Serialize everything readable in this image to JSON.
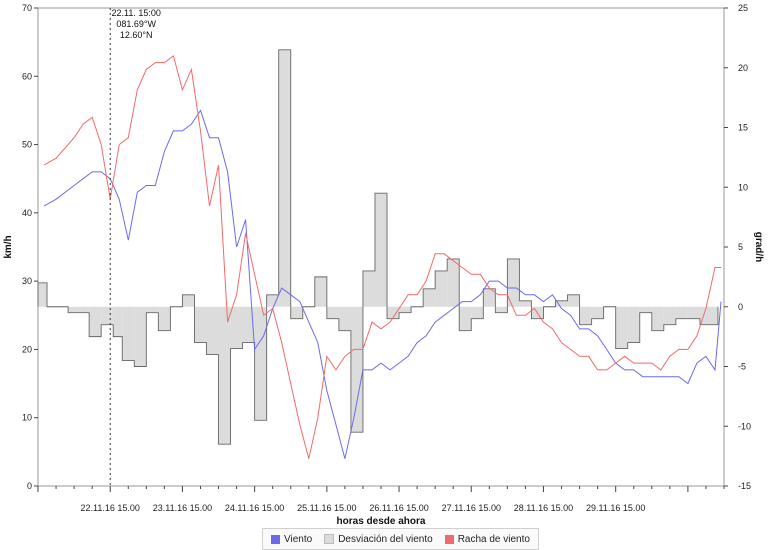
{
  "chart_data": {
    "type": "line",
    "xlabel": "horas desde ahora",
    "ylabel_left": "km/h",
    "ylabel_right": "grad/h",
    "ylim_left": [
      0,
      70
    ],
    "ylim_right": [
      -15,
      25
    ],
    "yticks_left": [
      "0",
      "10",
      "20",
      "30",
      "40",
      "50",
      "60",
      "70"
    ],
    "yticks_right": [
      "-15",
      "-10",
      "-5",
      "0",
      "5",
      "10",
      "15",
      "20",
      "25"
    ],
    "xticks": [
      "22.11.16 15.00",
      "23.11.16 15.00",
      "24.11.16 15.00",
      "25.11.16 15.00",
      "26.11.16 15.00",
      "27.11.16 15.00",
      "28.11.16 15.00",
      "29.11.16 15.00"
    ],
    "x_unit": "hours from first tick",
    "x_range": [
      -24,
      204
    ],
    "cursor": {
      "x": 0,
      "date": "22.11. 15:00",
      "lon": "081.69°W",
      "lat": "12.60°N"
    },
    "colors": {
      "viento": "#6b6bea",
      "racha": "#f06a6a",
      "desviacion_fill": "#dcdcdc",
      "desviacion_stroke": "#666666"
    },
    "series": [
      {
        "name": "Viento",
        "axis": "left",
        "x": [
          -22,
          -18,
          -12,
          -9,
          -6,
          -3,
          0,
          3,
          6,
          9,
          12,
          15,
          18,
          21,
          24,
          27,
          30,
          33,
          36,
          39,
          42,
          45,
          48,
          51,
          54,
          57,
          60,
          63,
          66,
          69,
          72,
          75,
          78,
          81,
          84,
          87,
          90,
          93,
          96,
          99,
          102,
          105,
          108,
          111,
          114,
          117,
          120,
          123,
          126,
          129,
          132,
          135,
          138,
          141,
          144,
          147,
          150,
          153,
          156,
          159,
          162,
          165,
          168,
          171,
          174,
          177,
          180,
          183,
          186,
          189,
          192,
          195,
          198,
          201,
          203
        ],
        "values": [
          41,
          42,
          44,
          45,
          46,
          46,
          45,
          42,
          36,
          43,
          44,
          44,
          49,
          52,
          52,
          53,
          55,
          51,
          51,
          46,
          35,
          39,
          20,
          22,
          26,
          29,
          28,
          27,
          24,
          21,
          14,
          9,
          4,
          10,
          17,
          17,
          18,
          17,
          18,
          19,
          21,
          22,
          24,
          25,
          26,
          27,
          27,
          28,
          30,
          30,
          29,
          29,
          28,
          28,
          27,
          28,
          26,
          25,
          23,
          23,
          22,
          20,
          18,
          17,
          17,
          16,
          16,
          16,
          16,
          16,
          15,
          18,
          19,
          17,
          27
        ]
      },
      {
        "name": "Racha de viento",
        "axis": "left",
        "x": [
          -22,
          -18,
          -12,
          -9,
          -6,
          -3,
          0,
          3,
          6,
          9,
          12,
          15,
          18,
          21,
          24,
          27,
          30,
          33,
          36,
          39,
          42,
          45,
          48,
          51,
          54,
          57,
          60,
          63,
          66,
          69,
          72,
          75,
          78,
          81,
          84,
          87,
          90,
          93,
          96,
          99,
          102,
          105,
          108,
          111,
          114,
          117,
          120,
          123,
          126,
          129,
          132,
          135,
          138,
          141,
          144,
          147,
          150,
          153,
          156,
          159,
          162,
          165,
          168,
          171,
          174,
          177,
          180,
          183,
          186,
          189,
          192,
          195,
          198,
          201,
          203
        ],
        "values": [
          47,
          48,
          51,
          53,
          54,
          50,
          42,
          50,
          51,
          58,
          61,
          62,
          62,
          63,
          58,
          61,
          52,
          41,
          47,
          24,
          28,
          37,
          31,
          25,
          26,
          21,
          15,
          9,
          4,
          10,
          19,
          17,
          19,
          20,
          20,
          24,
          23,
          24,
          26,
          28,
          28,
          30,
          34,
          34,
          33,
          32,
          31,
          31,
          29,
          28,
          28,
          25,
          25,
          26,
          24,
          23,
          21,
          20,
          19,
          19,
          17,
          17,
          18,
          19,
          18,
          18,
          18,
          17,
          19,
          20,
          20,
          22,
          26,
          32,
          32
        ]
      },
      {
        "name": "Desviación del viento",
        "axis": "right",
        "type": "step",
        "x": [
          -24,
          -21,
          -17,
          -14,
          -10,
          -7,
          -3,
          0,
          1,
          4,
          8,
          12,
          16,
          20,
          24,
          28,
          32,
          36,
          40,
          44,
          48,
          52,
          56,
          60,
          64,
          68,
          72,
          76,
          80,
          84,
          88,
          92,
          96,
          100,
          104,
          108,
          112,
          116,
          120,
          124,
          128,
          132,
          136,
          140,
          144,
          148,
          152,
          156,
          160,
          164,
          168,
          172,
          176,
          180,
          184,
          188,
          192,
          196,
          200
        ],
        "values": [
          2,
          0,
          0,
          -0.5,
          -0.5,
          -2.5,
          -1.5,
          -1.5,
          -2.5,
          -4.5,
          -5,
          -0.5,
          -2,
          0,
          1,
          -3,
          -4,
          -11.5,
          -3.5,
          -3,
          -9.5,
          1,
          21.5,
          -1,
          0,
          2.5,
          -1,
          -2,
          -10.5,
          3,
          9.5,
          -1,
          -0.5,
          0,
          1.5,
          3,
          4,
          -2,
          -1,
          1.5,
          -0.5,
          4,
          0.5,
          -1,
          0,
          0.5,
          1,
          -1.5,
          -1,
          0,
          -3.5,
          -3,
          -0.5,
          -2,
          -1.5,
          -1,
          -1,
          -1.5,
          -1.5
        ]
      }
    ],
    "legend": [
      "Viento",
      "Desviación del viento",
      "Racha de viento"
    ]
  }
}
